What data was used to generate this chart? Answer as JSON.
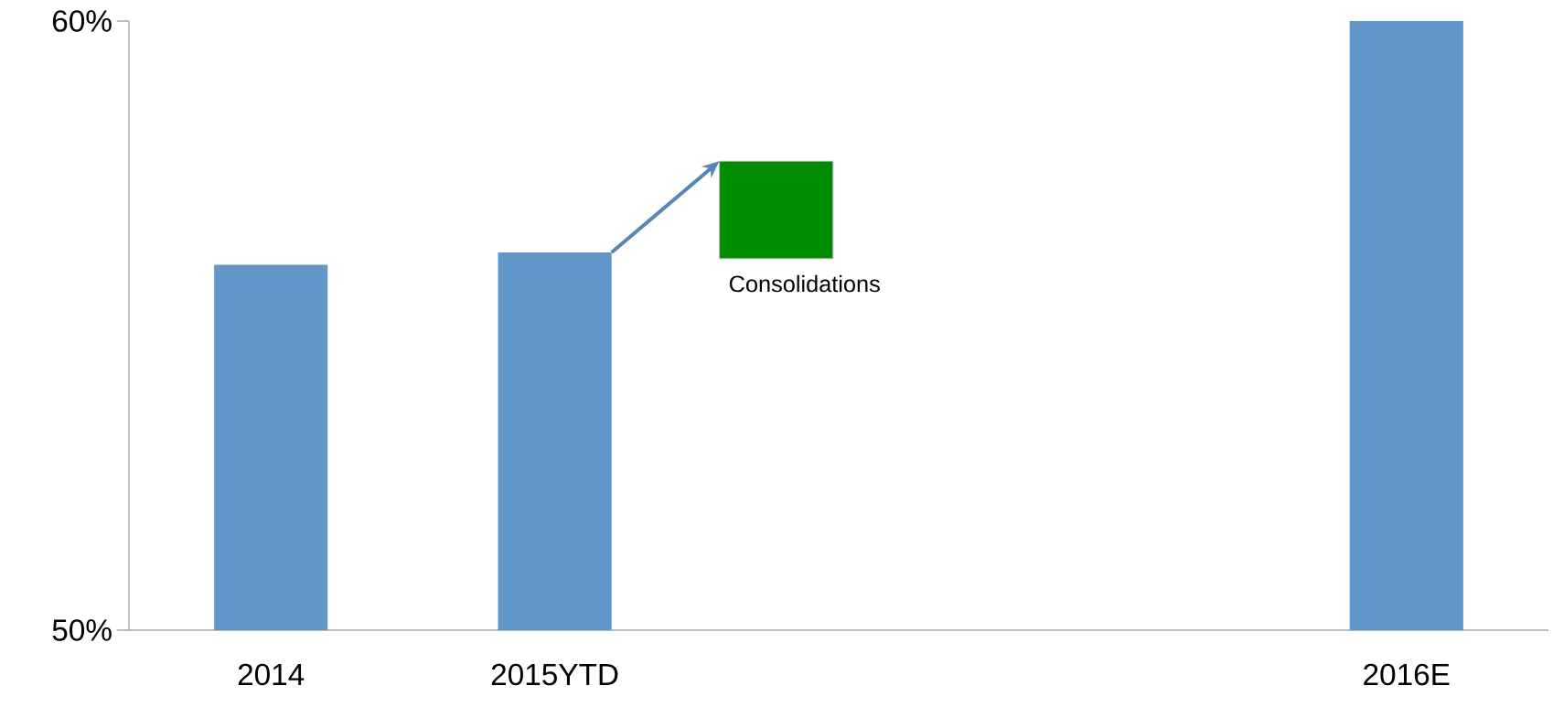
{
  "chart_data": {
    "type": "bar",
    "categories": [
      "2014",
      "2015YTD",
      null,
      null,
      "2016E"
    ],
    "series": [
      {
        "color": "#6096c8",
        "values": [
          56.0,
          56.2,
          null,
          null,
          60
        ]
      },
      {
        "color": "#008c00",
        "values": [
          null,
          null,
          1.6,
          null,
          null
        ],
        "base": [
          null,
          null,
          56.1,
          null,
          null
        ]
      }
    ],
    "ylim": [
      50,
      60
    ],
    "yticks": [
      {
        "value": 50,
        "label": "50%"
      },
      {
        "value": 60,
        "label": "60%"
      }
    ],
    "annotations": [
      "Consolidations"
    ],
    "grid": false
  }
}
